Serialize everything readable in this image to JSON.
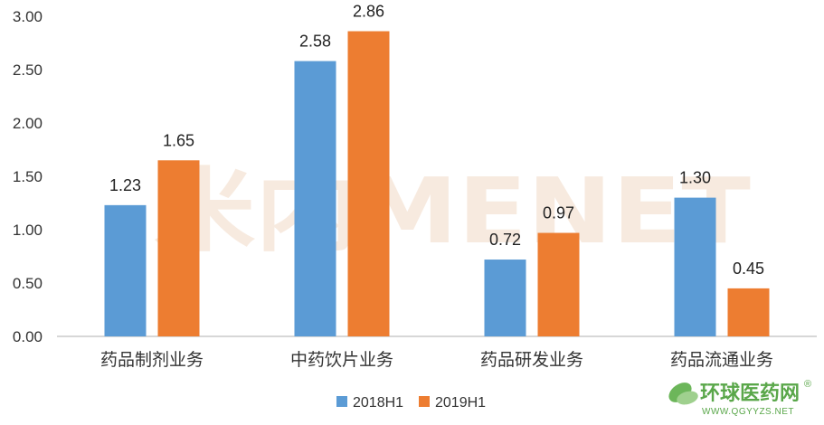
{
  "chart_data": {
    "type": "bar",
    "categories": [
      "药品制剂业务",
      "中药饮片业务",
      "药品研发业务",
      "药品流通业务"
    ],
    "series": [
      {
        "name": "2018H1",
        "color": "#5b9bd5",
        "values": [
          1.23,
          2.58,
          0.72,
          1.3
        ],
        "labels": [
          "1.23",
          "2.58",
          "0.72",
          "1.30"
        ]
      },
      {
        "name": "2019H1",
        "color": "#ed7d31",
        "values": [
          1.65,
          2.86,
          0.97,
          0.45
        ],
        "labels": [
          "1.65",
          "2.86",
          "0.97",
          "0.45"
        ]
      }
    ],
    "ylim": [
      0,
      3.0
    ],
    "yticks": [
      "0.00",
      "0.50",
      "1.00",
      "1.50",
      "2.00",
      "2.50",
      "3.00"
    ],
    "grid": false,
    "legend_position": "bottom"
  },
  "watermarks": {
    "center_text": "米内MENET",
    "logo_text": "环球医药网",
    "logo_url": "WWW.QGYYZS.NET",
    "logo_mark": "®",
    "logo_color": "#5aa74a"
  }
}
